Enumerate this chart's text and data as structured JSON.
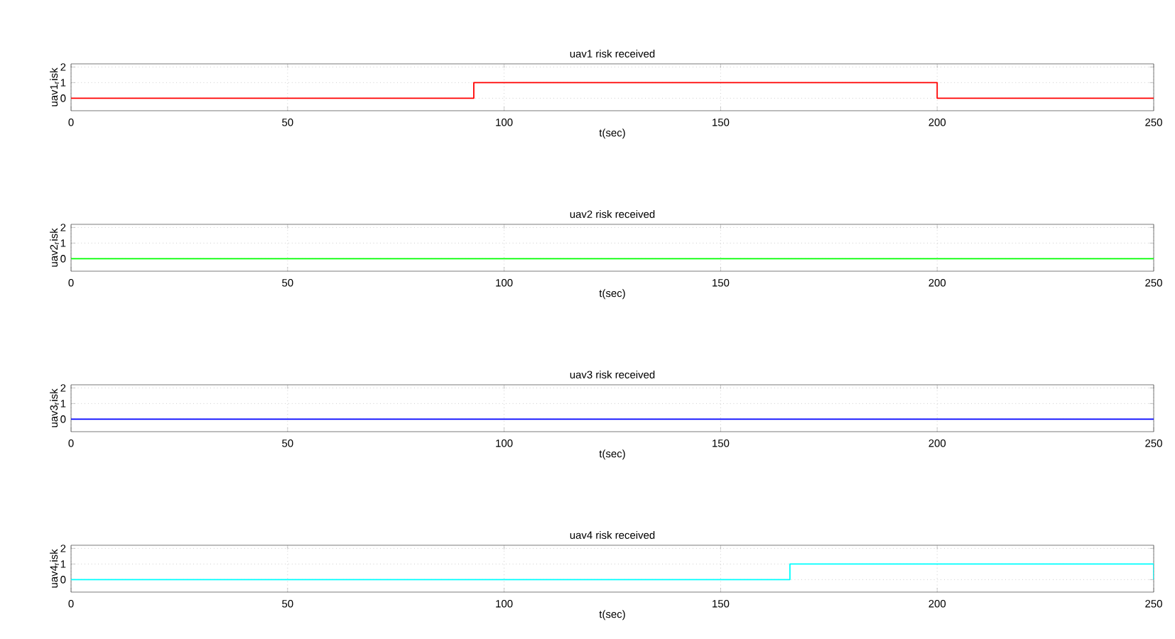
{
  "chart_data": [
    {
      "type": "step",
      "title": "uav1 risk received",
      "xlabel": "t(sec)",
      "ylabel": "uav1$_{r}$isk",
      "x": [
        0,
        93,
        200,
        250
      ],
      "values": [
        0,
        1,
        0,
        0
      ],
      "color": "#ff0000",
      "xlim": [
        0,
        250
      ],
      "ylim": [
        -0.8,
        2.2
      ],
      "xticks": [
        0,
        50,
        100,
        150,
        200,
        250
      ],
      "yticks": [
        0,
        1,
        2
      ],
      "grid": true
    },
    {
      "type": "step",
      "title": "uav2 risk received",
      "xlabel": "t(sec)",
      "ylabel": "uav2$_{r}$isk",
      "x": [
        0,
        250
      ],
      "values": [
        0,
        0
      ],
      "color": "#00ff00",
      "xlim": [
        0,
        250
      ],
      "ylim": [
        -0.8,
        2.2
      ],
      "xticks": [
        0,
        50,
        100,
        150,
        200,
        250
      ],
      "yticks": [
        0,
        1,
        2
      ],
      "grid": true
    },
    {
      "type": "step",
      "title": "uav3 risk received",
      "xlabel": "t(sec)",
      "ylabel": "uav3$_{r}$isk",
      "x": [
        0,
        250
      ],
      "values": [
        0,
        0
      ],
      "color": "#0000ff",
      "xlim": [
        0,
        250
      ],
      "ylim": [
        -0.8,
        2.2
      ],
      "xticks": [
        0,
        50,
        100,
        150,
        200,
        250
      ],
      "yticks": [
        0,
        1,
        2
      ],
      "grid": true
    },
    {
      "type": "step",
      "title": "uav4 risk received",
      "xlabel": "t(sec)",
      "ylabel": "uav4$_{r}$isk",
      "x": [
        0,
        166,
        250
      ],
      "values": [
        0,
        1,
        0
      ],
      "color": "#00ffff",
      "xlim": [
        0,
        250
      ],
      "ylim": [
        -0.8,
        2.2
      ],
      "xticks": [
        0,
        50,
        100,
        150,
        200,
        250
      ],
      "yticks": [
        0,
        1,
        2
      ],
      "grid": true
    }
  ]
}
